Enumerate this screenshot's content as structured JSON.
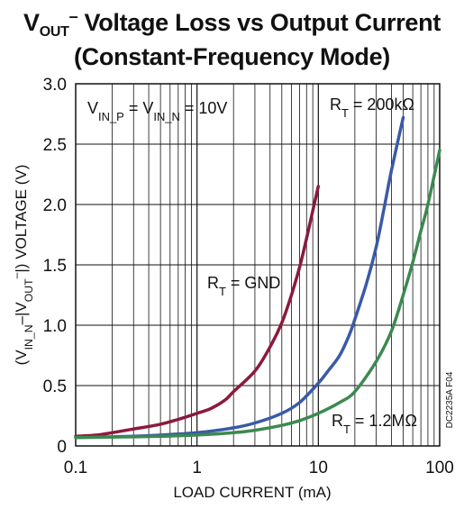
{
  "title": {
    "line1": {
      "v": "V",
      "sub": "OUT",
      "sup": "–",
      "rest": " Voltage Loss vs Output Current"
    },
    "line2": "(Constant-Frequency Mode)"
  },
  "figure_id": "DC2235A F04",
  "chart_data": {
    "type": "line",
    "x_scale": "log",
    "xlim": [
      0.1,
      100
    ],
    "ylim": [
      0,
      3.0
    ],
    "xlabel": "LOAD CURRENT (mA)",
    "ylabel": {
      "pre": "(V",
      "sub1": "IN_N",
      "mid1": "–|V",
      "sub2": "OUT",
      "sup2": "–",
      "post": "|) VOLTAGE (V)"
    },
    "x_ticks": [
      0.1,
      1,
      10,
      100
    ],
    "x_tick_labels": [
      "0.1",
      "1",
      "10",
      "100"
    ],
    "y_ticks": [
      0,
      0.5,
      1.0,
      1.5,
      2.0,
      2.5,
      3.0
    ],
    "y_tick_labels": [
      "0",
      "0.5",
      "1.0",
      "1.5",
      "2.0",
      "2.5",
      "3.0"
    ],
    "grid": true,
    "condition_label": {
      "pre": "V",
      "sub1": "IN_P",
      "mid": " = V",
      "sub2": "IN_N",
      "post": " = 10V"
    },
    "series": [
      {
        "label": {
          "pre": "R",
          "sub": "T",
          "post": " = GND"
        },
        "color": "#8b1a3c",
        "x": [
          0.1,
          0.15,
          0.2,
          0.3,
          0.5,
          0.7,
          1.0,
          1.3,
          1.7,
          2.0,
          3.0,
          4.0,
          5.0,
          6.0,
          7.0,
          8.0,
          9.0,
          10.0
        ],
        "y": [
          0.08,
          0.09,
          0.11,
          0.14,
          0.18,
          0.22,
          0.27,
          0.31,
          0.38,
          0.45,
          0.62,
          0.82,
          1.02,
          1.25,
          1.48,
          1.72,
          1.95,
          2.15
        ]
      },
      {
        "label": {
          "pre": "R",
          "sub": "T",
          "post": " = 200kΩ"
        },
        "color": "#3a5aa8",
        "x": [
          0.1,
          0.3,
          0.5,
          1.0,
          2.0,
          3.0,
          5.0,
          7.0,
          10.0,
          12.0,
          15.0,
          18.0,
          20.0,
          25.0,
          30.0,
          35.0,
          40.0,
          50.0
        ],
        "y": [
          0.07,
          0.08,
          0.09,
          0.11,
          0.15,
          0.19,
          0.27,
          0.36,
          0.52,
          0.62,
          0.75,
          0.92,
          1.05,
          1.35,
          1.65,
          1.98,
          2.28,
          2.72
        ]
      },
      {
        "label": {
          "pre": "R",
          "sub": "T",
          "post": " = 1.2MΩ"
        },
        "color": "#3b8a4f",
        "x": [
          0.1,
          0.3,
          0.5,
          1.0,
          2.0,
          3.0,
          5.0,
          7.0,
          10.0,
          15.0,
          20.0,
          30.0,
          40.0,
          50.0,
          60.0,
          70.0,
          80.0,
          100.0
        ],
        "y": [
          0.07,
          0.075,
          0.08,
          0.09,
          0.11,
          0.13,
          0.17,
          0.21,
          0.27,
          0.36,
          0.45,
          0.7,
          0.95,
          1.25,
          1.52,
          1.78,
          2.0,
          2.45
        ]
      }
    ]
  }
}
